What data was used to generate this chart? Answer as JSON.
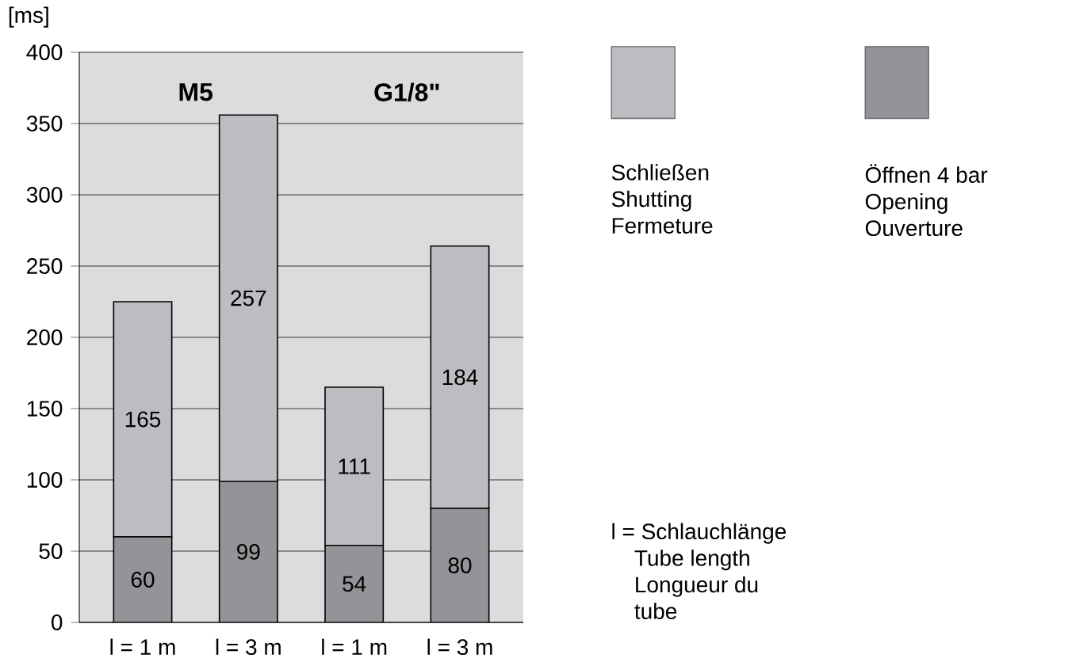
{
  "chart_data": {
    "type": "bar",
    "stacked": true,
    "ylabel": "[ms]",
    "categories": [
      "l = 1 m",
      "l = 3 m",
      "l = 1 m",
      "l = 3 m"
    ],
    "series": [
      {
        "name": "Öffnen 4 bar Opening Ouverture",
        "color": "#939497",
        "values": [
          60,
          99,
          54,
          80
        ]
      },
      {
        "name": "Schließen Shutting Fermeture",
        "color": "#bcbdc1",
        "values": [
          165,
          257,
          111,
          184
        ]
      }
    ],
    "ylim": [
      0,
      400
    ],
    "yticks": [
      0,
      50,
      100,
      150,
      200,
      250,
      300,
      350,
      400
    ],
    "grid": "y",
    "legend": "right",
    "data_labels": true,
    "annotations": [
      "M5",
      "G1/8\"",
      "l = Schlauchlänge Tube length Longueur du tube"
    ]
  }
}
